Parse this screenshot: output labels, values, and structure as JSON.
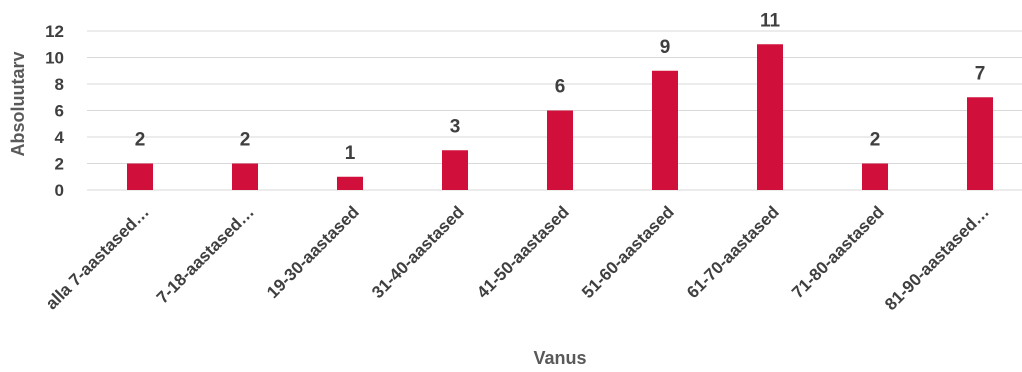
{
  "chart_data": {
    "type": "bar",
    "categories": [
      "alla 7-aastased…",
      "7-18-aastased…",
      "19-30-aastased",
      "31-40-aastased",
      "41-50-aastased",
      "51-60-aastased",
      "61-70-aastased",
      "71-80-aastased",
      "81-90-aastased…"
    ],
    "values": [
      2,
      2,
      1,
      3,
      6,
      9,
      11,
      2,
      7
    ],
    "xlabel": "Vanus",
    "ylabel": "Absoluutarv",
    "ylim": [
      0,
      12
    ],
    "yticks": [
      0,
      2,
      4,
      6,
      8,
      10,
      12
    ],
    "grid": true,
    "legend": "none",
    "bar_color": "#d0103a",
    "data_labels": true
  }
}
